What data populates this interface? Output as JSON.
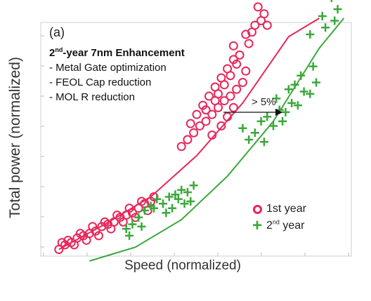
{
  "chart_data": {
    "type": "scatter",
    "panel_label": "(a)",
    "xlabel": "Speed (normalized)",
    "ylabel": "Total power (normalized)",
    "grid": false,
    "legend_position": "bottom-right",
    "annotation": {
      "title_main": "2",
      "title_sup": "nd",
      "title_rest": "-year 7nm Enhancement",
      "items": [
        "- Metal Gate optimization",
        "- FEOL Cap reduction",
        "- MOL R reduction"
      ]
    },
    "arrow_label": "> 5%",
    "series": [
      {
        "label_main": "1st year",
        "label_sup": "",
        "marker": "circle",
        "color": "#e6275a",
        "fit": [
          [
            0.05,
            0.02
          ],
          [
            0.2,
            0.13
          ],
          [
            0.35,
            0.25
          ],
          [
            0.5,
            0.43
          ],
          [
            0.65,
            0.66
          ],
          [
            0.8,
            0.95
          ],
          [
            0.9,
            1.17
          ]
        ],
        "points": [
          [
            0.05,
            0.02
          ],
          [
            0.07,
            0.04
          ],
          [
            0.09,
            0.05
          ],
          [
            0.11,
            0.07
          ],
          [
            0.13,
            0.08
          ],
          [
            0.15,
            0.09
          ],
          [
            0.17,
            0.1
          ],
          [
            0.19,
            0.12
          ],
          [
            0.21,
            0.13
          ],
          [
            0.23,
            0.14
          ],
          [
            0.25,
            0.16
          ],
          [
            0.27,
            0.17
          ],
          [
            0.29,
            0.18
          ],
          [
            0.31,
            0.2
          ],
          [
            0.33,
            0.22
          ],
          [
            0.35,
            0.23
          ],
          [
            0.08,
            0.06
          ],
          [
            0.12,
            0.09
          ],
          [
            0.16,
            0.12
          ],
          [
            0.2,
            0.14
          ],
          [
            0.24,
            0.17
          ],
          [
            0.28,
            0.2
          ],
          [
            0.32,
            0.23
          ],
          [
            0.14,
            0.06
          ],
          [
            0.18,
            0.08
          ],
          [
            0.22,
            0.11
          ],
          [
            0.26,
            0.14
          ],
          [
            0.3,
            0.16
          ],
          [
            0.34,
            0.19
          ],
          [
            0.36,
            0.25
          ],
          [
            0.1,
            0.04
          ],
          [
            0.06,
            0.05
          ],
          [
            0.47,
            0.5
          ],
          [
            0.49,
            0.53
          ],
          [
            0.51,
            0.56
          ],
          [
            0.53,
            0.58
          ],
          [
            0.55,
            0.61
          ],
          [
            0.57,
            0.64
          ],
          [
            0.59,
            0.67
          ],
          [
            0.61,
            0.69
          ],
          [
            0.63,
            0.72
          ],
          [
            0.65,
            0.75
          ],
          [
            0.5,
            0.61
          ],
          [
            0.52,
            0.65
          ],
          [
            0.54,
            0.69
          ],
          [
            0.56,
            0.73
          ],
          [
            0.58,
            0.77
          ],
          [
            0.6,
            0.81
          ],
          [
            0.62,
            0.85
          ],
          [
            0.64,
            0.87
          ],
          [
            0.55,
            0.52
          ],
          [
            0.58,
            0.56
          ],
          [
            0.6,
            0.6
          ],
          [
            0.62,
            0.64
          ],
          [
            0.57,
            0.7
          ],
          [
            0.59,
            0.74
          ],
          [
            0.61,
            0.78
          ],
          [
            0.63,
            0.83
          ],
          [
            0.53,
            0.63
          ],
          [
            0.56,
            0.67
          ],
          [
            0.48,
            0.57
          ],
          [
            0.45,
            0.47
          ],
          [
            0.66,
            0.8
          ],
          [
            0.67,
            0.92
          ],
          [
            0.69,
            1.0
          ],
          [
            0.71,
            1.02
          ],
          [
            0.72,
            1.05
          ],
          [
            0.7,
            1.08
          ],
          [
            0.68,
            0.97
          ],
          [
            0.62,
            0.91
          ],
          [
            0.66,
            0.96
          ],
          [
            0.73,
            1.0
          ]
        ]
      },
      {
        "label_main": "2",
        "label_sup": "nd",
        "label_rest": " year",
        "marker": "plus",
        "color": "#3aa83a",
        "fit": [
          [
            0.15,
            -0.08
          ],
          [
            0.3,
            0.03
          ],
          [
            0.45,
            0.15
          ],
          [
            0.6,
            0.34
          ],
          [
            0.75,
            0.58
          ],
          [
            0.9,
            0.9
          ],
          [
            0.98,
            1.07
          ]
        ],
        "points": [
          [
            0.27,
            0.11
          ],
          [
            0.29,
            0.13
          ],
          [
            0.31,
            0.16
          ],
          [
            0.33,
            0.19
          ],
          [
            0.35,
            0.21
          ],
          [
            0.37,
            0.24
          ],
          [
            0.39,
            0.22
          ],
          [
            0.41,
            0.25
          ],
          [
            0.43,
            0.26
          ],
          [
            0.45,
            0.28
          ],
          [
            0.47,
            0.27
          ],
          [
            0.49,
            0.3
          ],
          [
            0.36,
            0.2
          ],
          [
            0.42,
            0.2
          ],
          [
            0.44,
            0.24
          ],
          [
            0.48,
            0.23
          ],
          [
            0.32,
            0.12
          ],
          [
            0.28,
            0.08
          ],
          [
            0.4,
            0.18
          ],
          [
            0.46,
            0.22
          ],
          [
            0.65,
            0.55
          ],
          [
            0.67,
            0.5
          ],
          [
            0.69,
            0.53
          ],
          [
            0.71,
            0.58
          ],
          [
            0.73,
            0.6
          ],
          [
            0.75,
            0.56
          ],
          [
            0.77,
            0.63
          ],
          [
            0.79,
            0.62
          ],
          [
            0.81,
            0.66
          ],
          [
            0.83,
            0.65
          ],
          [
            0.85,
            0.71
          ],
          [
            0.87,
            0.7
          ],
          [
            0.89,
            0.75
          ],
          [
            0.76,
            0.68
          ],
          [
            0.8,
            0.72
          ],
          [
            0.84,
            0.78
          ],
          [
            0.78,
            0.58
          ],
          [
            0.72,
            0.49
          ],
          [
            0.88,
            0.82
          ],
          [
            0.82,
            0.74
          ],
          [
            0.87,
            0.96
          ],
          [
            0.91,
            1.04
          ],
          [
            0.94,
            1.12
          ],
          [
            0.97,
            1.16
          ],
          [
            0.95,
            1.02
          ],
          [
            0.92,
            0.99
          ],
          [
            0.96,
            1.07
          ]
        ]
      }
    ]
  }
}
